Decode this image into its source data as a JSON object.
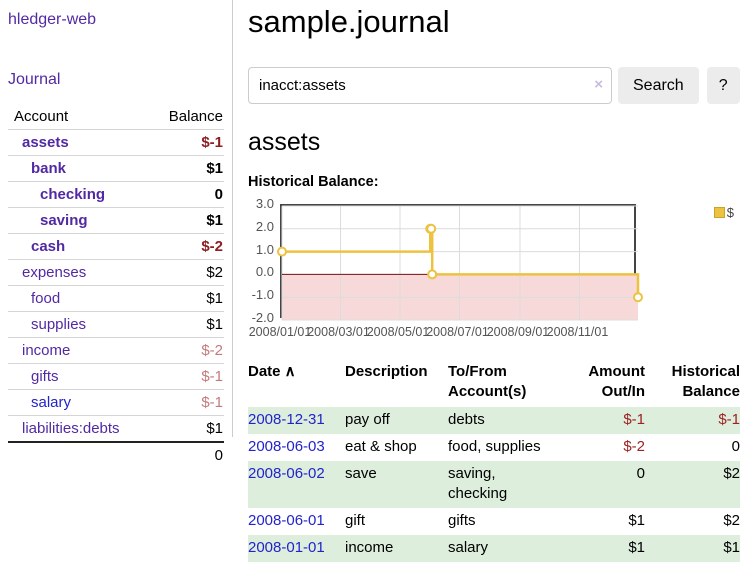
{
  "sidebar": {
    "brand": "hledger-web",
    "journal_link": "Journal",
    "accounts_table": {
      "headers": {
        "account": "Account",
        "balance": "Balance"
      },
      "rows": [
        {
          "name": "assets",
          "balance": "$-1",
          "indent": 0,
          "bold": true,
          "balance_style": "neg-strong"
        },
        {
          "name": "bank",
          "balance": "$1",
          "indent": 1,
          "bold": true,
          "balance_style": "pos"
        },
        {
          "name": "checking",
          "balance": "0",
          "indent": 2,
          "bold": true,
          "balance_style": "pos"
        },
        {
          "name": "saving",
          "balance": "$1",
          "indent": 2,
          "bold": true,
          "balance_style": "pos"
        },
        {
          "name": "cash",
          "balance": "$-2",
          "indent": 1,
          "bold": true,
          "balance_style": "neg-strong"
        },
        {
          "name": "expenses",
          "balance": "$2",
          "indent": 0,
          "bold": false,
          "balance_style": "pos"
        },
        {
          "name": "food",
          "balance": "$1",
          "indent": 1,
          "bold": false,
          "balance_style": "pos"
        },
        {
          "name": "supplies",
          "balance": "$1",
          "indent": 1,
          "bold": false,
          "balance_style": "pos"
        },
        {
          "name": "income",
          "balance": "$-2",
          "indent": 0,
          "bold": false,
          "balance_style": "neg-faded"
        },
        {
          "name": "gifts",
          "balance": "$-1",
          "indent": 1,
          "bold": false,
          "balance_style": "neg-faded"
        },
        {
          "name": "salary",
          "balance": "$-1",
          "indent": 1,
          "bold": false,
          "balance_style": "neg-faded",
          "link_color": "blue"
        },
        {
          "name": "liabilities:debts",
          "balance": "$1",
          "indent": 0,
          "bold": false,
          "balance_style": "pos"
        }
      ],
      "total": "0"
    }
  },
  "main": {
    "title": "sample.journal",
    "search": {
      "value": "inacct:assets",
      "clear_icon": "×",
      "button": "Search",
      "help_button": "?"
    },
    "account_heading": "assets",
    "chart_label": "Historical Balance:"
  },
  "chart_data": {
    "type": "line",
    "style": "step",
    "title": "Historical Balance:",
    "series": [
      {
        "name": "$",
        "color": "#edc240",
        "points": [
          [
            "2008-01-01",
            1
          ],
          [
            "2008-06-01",
            2
          ],
          [
            "2008-06-02",
            2
          ],
          [
            "2008-06-03",
            0
          ],
          [
            "2008-12-31",
            -1
          ]
        ]
      }
    ],
    "xlim": [
      "2008-01-01",
      "2008-12-31"
    ],
    "ylim": [
      -2,
      3
    ],
    "x_ticks": [
      {
        "date": "2008-01-01",
        "label": "2008/01/01"
      },
      {
        "date": "2008-03-01",
        "label": "2008/03/01"
      },
      {
        "date": "2008-05-01",
        "label": "2008/05/01"
      },
      {
        "date": "2008-07-01",
        "label": "2008/07/01"
      },
      {
        "date": "2008-09-01",
        "label": "2008/09/01"
      },
      {
        "date": "2008-11-01",
        "label": "2008/11/01"
      }
    ],
    "y_ticks": [
      3,
      2,
      1,
      0,
      -1,
      -2
    ],
    "legend_position": "top-right",
    "grid": true,
    "zero_line_color": "#7a1010",
    "negative_region_color": "#f8d9d9"
  },
  "register_table": {
    "headers": [
      {
        "label": "Date",
        "sort_icon": "∧",
        "align": "left"
      },
      {
        "label": "Description",
        "align": "left"
      },
      {
        "label": "To/From Account(s)",
        "align": "left"
      },
      {
        "label": "Amount Out/In",
        "align": "right"
      },
      {
        "label": "Historical Balance",
        "align": "right"
      }
    ],
    "rows": [
      {
        "date": "2008-12-31",
        "description": "pay off",
        "accounts": "debts",
        "amount": "$-1",
        "amount_negative": true,
        "balance": "$-1",
        "balance_negative": true,
        "shaded": true
      },
      {
        "date": "2008-06-03",
        "description": "eat & shop",
        "accounts": "food, supplies",
        "amount": "$-2",
        "amount_negative": true,
        "balance": "0",
        "balance_negative": false,
        "shaded": false
      },
      {
        "date": "2008-06-02",
        "description": "save",
        "accounts": "saving, checking",
        "amount": "0",
        "amount_negative": false,
        "balance": "$2",
        "balance_negative": false,
        "shaded": true
      },
      {
        "date": "2008-06-01",
        "description": "gift",
        "accounts": "gifts",
        "amount": "$1",
        "amount_negative": false,
        "balance": "$2",
        "balance_negative": false,
        "shaded": false
      },
      {
        "date": "2008-01-01",
        "description": "income",
        "accounts": "salary",
        "amount": "$1",
        "amount_negative": false,
        "balance": "$1",
        "balance_negative": false,
        "shaded": true
      }
    ]
  }
}
